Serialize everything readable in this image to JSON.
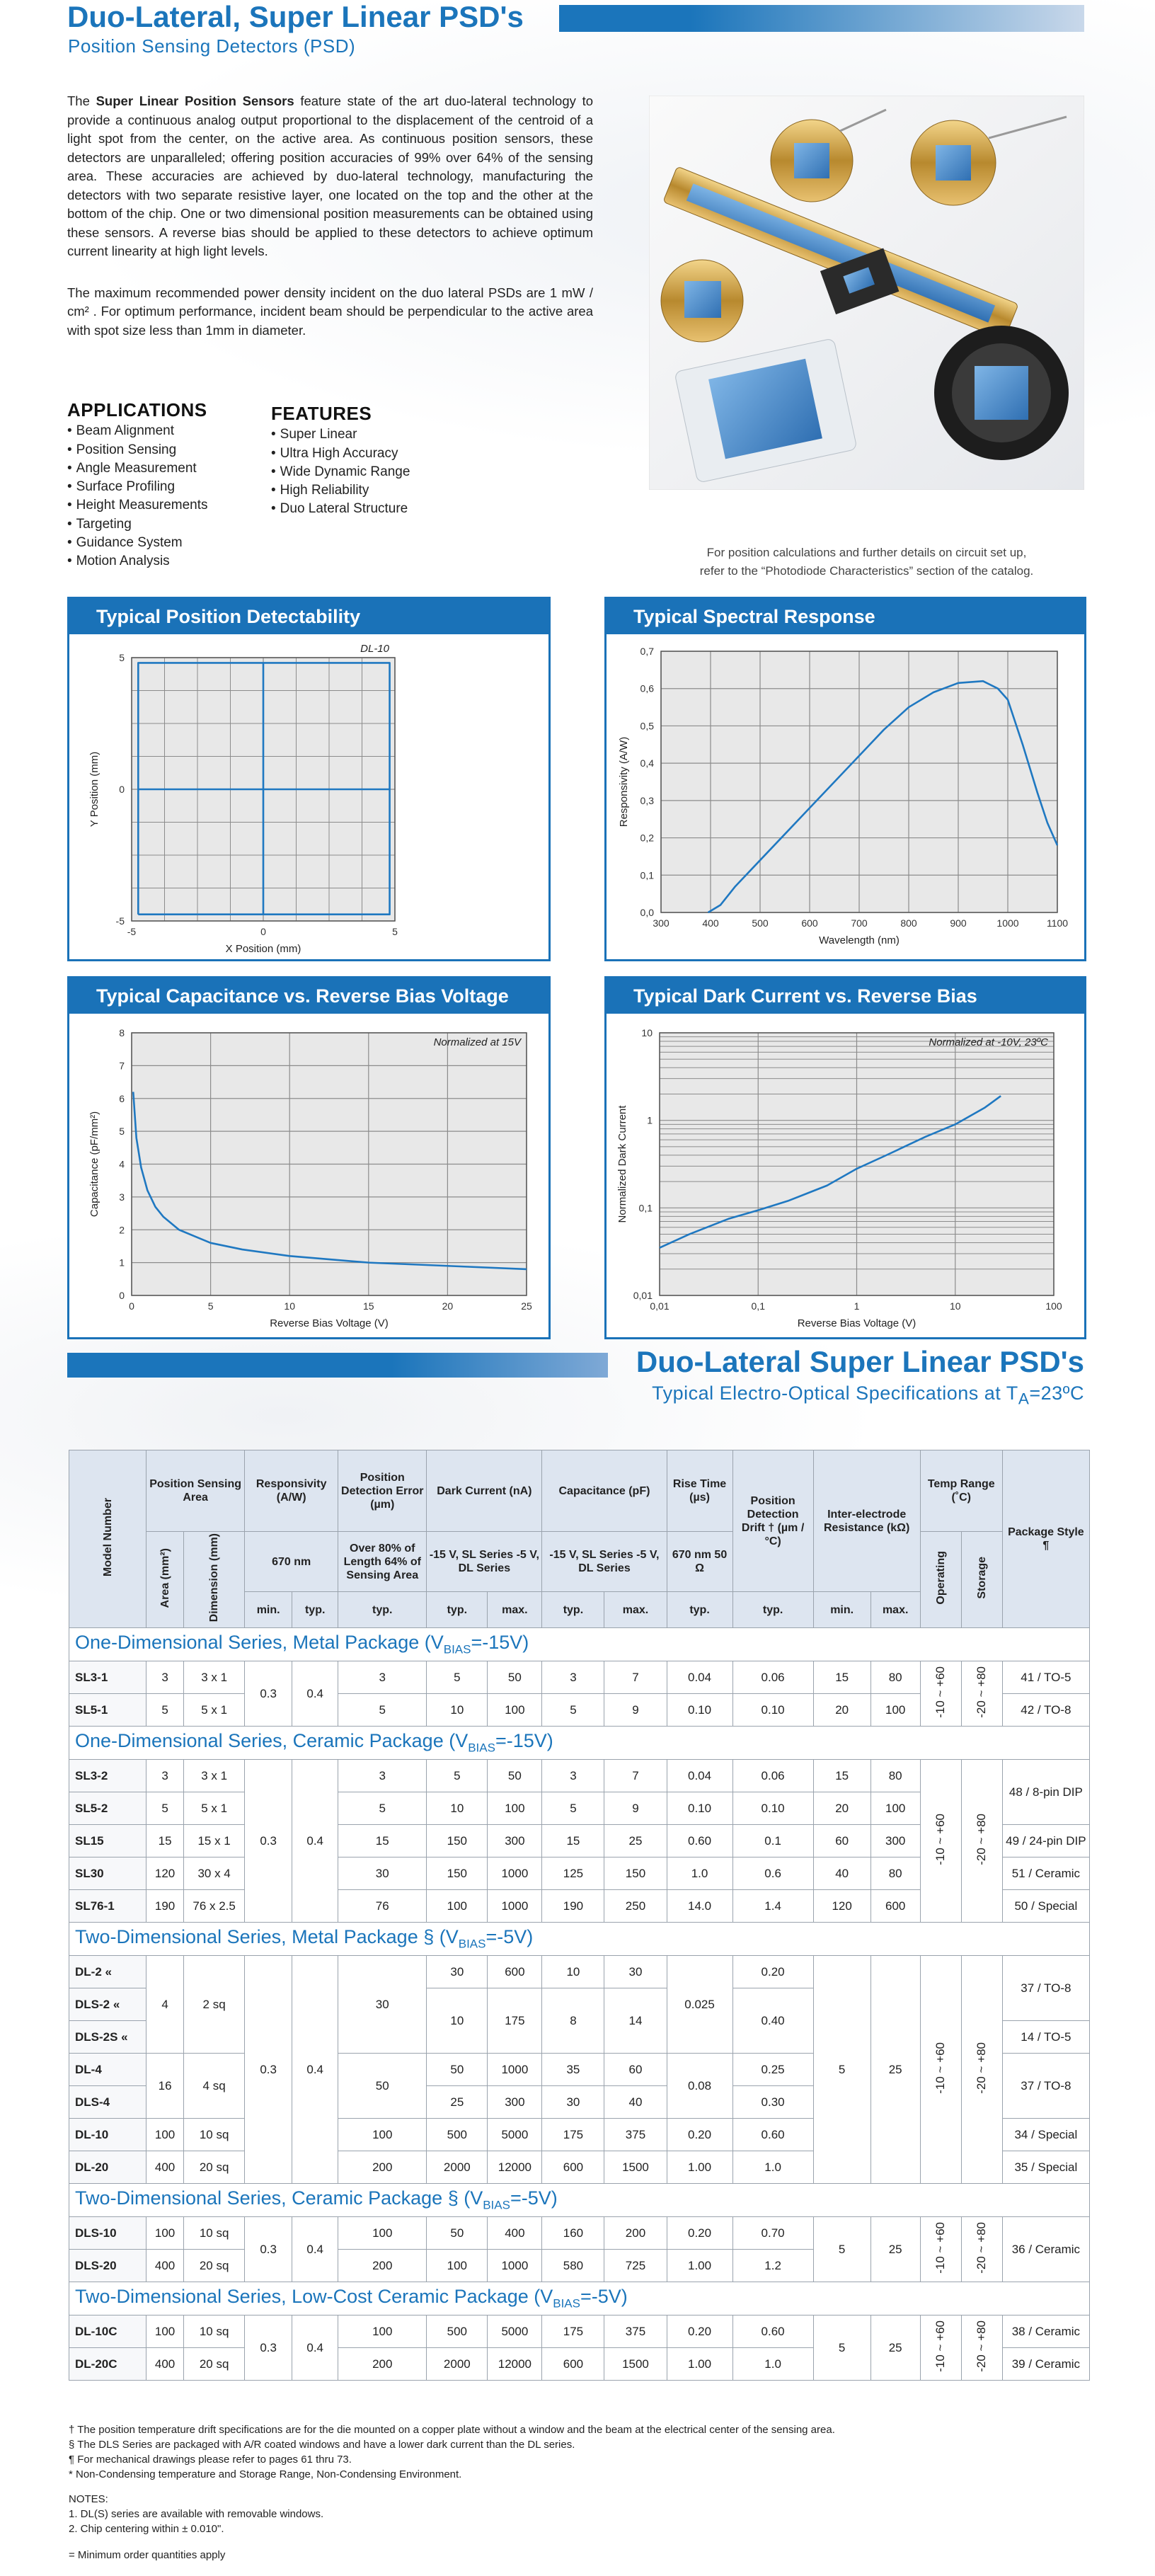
{
  "header": {
    "title": "Duo-Lateral, Super Linear PSD's",
    "subtitle": "Position Sensing Detectors (PSD)"
  },
  "intro": [
    [
      "The ",
      "Super Linear Position Sensors",
      " feature state of the art duo-lateral technology to provide a continuous analog output proportional to the displacement of the centroid of a light spot from the center, on the active area. As continuous position sensors, these detectors are unparalleled; offering position accuracies of 99% over 64% of the sensing area. These accuracies are achieved by duo-lateral technology, manufacturing the detectors with two separate resistive layer, one located on the top and the other at the bottom of the chip. One or two dimensional position measurements can be obtained using these sensors. A reverse bias should be applied to these detectors to achieve optimum current linearity at high light levels."
    ],
    [
      "The maximum recommended power density incident on the duo lateral PSDs are 1 mW / cm² . For optimum performance, incident beam should be perpendicular to the active area with spot size less than 1mm in diameter."
    ]
  ],
  "applications": {
    "title": "APPLICATIONS",
    "items": [
      "Beam Alignment",
      "Position Sensing",
      "Angle Measurement",
      "Surface Profiling",
      "Height Measurements",
      "Targeting",
      "Guidance System",
      "Motion Analysis"
    ]
  },
  "features": {
    "title": "FEATURES",
    "items": [
      "Super Linear",
      "Ultra High Accuracy",
      "Wide Dynamic Range",
      "High Reliability",
      "Duo Lateral Structure"
    ]
  },
  "note": [
    "For position calculations and further details on circuit set up,",
    "refer to the “Photodiode Characteristics” section of the catalog."
  ],
  "chart_data": [
    {
      "type": "line",
      "title": "Typical Position Detectability",
      "annotation": "DL-10",
      "x_label": "X Position (mm)",
      "y_label": "Y Position (mm)",
      "grid": true,
      "xlim": [
        -5,
        5
      ],
      "ylim": [
        -5,
        5
      ],
      "xticks": [
        -5,
        0,
        5
      ],
      "yticks": [
        -5,
        0,
        5
      ],
      "xgrid": [
        -3.75,
        -2.5,
        -1.25,
        1.25,
        2.5,
        3.75
      ],
      "ygrid": [
        -3.75,
        -2.5,
        -1.25,
        1.25,
        2.5,
        3.75
      ],
      "series": [
        {
          "color": "#1f78c1",
          "x": [
            -4.75,
            4.8,
            4.8,
            -4.75,
            -4.75
          ],
          "values": [
            -4.75,
            -4.75,
            4.8,
            4.8,
            -4.75
          ]
        },
        {
          "color": "#1f78c1",
          "x": [
            0,
            0
          ],
          "values": [
            -4.75,
            4.8
          ]
        },
        {
          "color": "#1f78c1",
          "x": [
            -4.75,
            4.8
          ],
          "values": [
            0,
            0
          ]
        }
      ]
    },
    {
      "type": "line",
      "title": "Typical Spectral Response",
      "x_label": "Wavelength (nm)",
      "y_label": "Responsivity (A/W)",
      "grid": true,
      "xlim": [
        300,
        1100
      ],
      "ylim": [
        0,
        0.7
      ],
      "xticks": [
        300,
        400,
        500,
        600,
        700,
        800,
        900,
        1000,
        1100
      ],
      "yticks": [
        {
          "value": 0,
          "label": "0,0"
        },
        {
          "value": 0.1,
          "label": "0,1"
        },
        {
          "value": 0.2,
          "label": "0,2"
        },
        {
          "value": 0.3,
          "label": "0,3"
        },
        {
          "value": 0.4,
          "label": "0,4"
        },
        {
          "value": 0.5,
          "label": "0,5"
        },
        {
          "value": 0.6,
          "label": "0,6"
        },
        {
          "value": 0.7,
          "label": "0,7"
        }
      ],
      "series": [
        {
          "color": "#1f78c1",
          "x": [
            395,
            420,
            450,
            500,
            550,
            600,
            650,
            700,
            750,
            800,
            850,
            900,
            950,
            980,
            1000,
            1030,
            1060,
            1080,
            1100
          ],
          "values": [
            0,
            0.02,
            0.07,
            0.14,
            0.21,
            0.28,
            0.35,
            0.42,
            0.49,
            0.55,
            0.59,
            0.615,
            0.62,
            0.6,
            0.57,
            0.45,
            0.32,
            0.24,
            0.18
          ]
        }
      ]
    },
    {
      "type": "line",
      "title": "Typical Capacitance vs. Reverse Bias Voltage",
      "annotation": "Normalized at 15V",
      "x_label": "Reverse Bias Voltage (V)",
      "y_label": "Capacitance (pF/mm²)",
      "grid": true,
      "xlim": [
        0,
        25
      ],
      "ylim": [
        0,
        8
      ],
      "xticks": [
        0,
        5,
        10,
        15,
        20,
        25
      ],
      "yticks": [
        0,
        1,
        2,
        3,
        4,
        5,
        6,
        7,
        8
      ],
      "series": [
        {
          "color": "#1f78c1",
          "x": [
            0.1,
            0.3,
            0.6,
            1,
            1.5,
            2,
            3,
            4,
            5,
            7,
            10,
            15,
            20,
            25
          ],
          "values": [
            6.2,
            4.8,
            3.9,
            3.2,
            2.7,
            2.4,
            2.0,
            1.8,
            1.6,
            1.4,
            1.2,
            1.0,
            0.9,
            0.8
          ]
        }
      ]
    },
    {
      "type": "line",
      "title": "Typical Dark Current vs. Reverse Bias",
      "annotation": "Normalized at -10V, 23ºC",
      "x_label": "Reverse Bias Voltage (V)",
      "y_label": "Normalized Dark Current",
      "grid": true,
      "xscale": "log",
      "yscale": "log",
      "xlim": [
        0.01,
        100
      ],
      "ylim": [
        0.01,
        10
      ],
      "xticks": [
        {
          "value": 0.01,
          "label": "0,01"
        },
        {
          "value": 0.1,
          "label": "0,1"
        },
        1,
        10,
        100
      ],
      "yticks": [
        {
          "value": 0.01,
          "label": "0,01"
        },
        {
          "value": 0.1,
          "label": "0,1"
        },
        1,
        10
      ],
      "ygrid": [
        0.02,
        0.03,
        0.04,
        0.05,
        0.06,
        0.07,
        0.08,
        0.09,
        0.2,
        0.3,
        0.4,
        0.5,
        0.6,
        0.7,
        0.8,
        0.9,
        2,
        3,
        4,
        5,
        6,
        7,
        8,
        9
      ],
      "series": [
        {
          "color": "#1f78c1",
          "x": [
            0.01,
            0.02,
            0.05,
            0.1,
            0.2,
            0.5,
            1,
            2,
            5,
            10,
            20,
            29
          ],
          "values": [
            0.035,
            0.05,
            0.075,
            0.094,
            0.12,
            0.18,
            0.28,
            0.4,
            0.65,
            0.9,
            1.4,
            1.9
          ]
        }
      ]
    }
  ],
  "spec_header": {
    "title": "Duo-Lateral Super Linear PSD's",
    "subtitle": [
      "Typical Electro-Optical Specifications at T",
      "A",
      "=23ºC"
    ]
  },
  "table": {
    "header": [
      "Model Number",
      "Position Sensing Area",
      "Responsivity (A/W)",
      "Position Detection Error (µm)",
      "Dark Current (nA)",
      "Capacitance (pF)",
      "Rise Time (µs)",
      "Position Detection Drift † (µm / °C)",
      "Inter-electrode Resistance (kΩ)",
      "Temp Range (˚C)",
      "Package Style ¶",
      "Area (mm²)",
      "Dimension (mm)",
      "670 nm",
      "Over 80% of Length 64% of Sensing Area",
      "-15 V, SL Series -5 V, DL Series",
      "-15 V, SL Series -5 V, DL Series",
      "670 nm 50 Ω",
      "Operating",
      "Storage",
      "min.",
      "typ.",
      "typ.",
      "typ.",
      "max.",
      "typ.",
      "max.",
      "typ.",
      "typ.",
      "min.",
      "max."
    ],
    "sections": [
      {
        "title": [
          "One-Dimensional Series, Metal Package (V",
          "BIAS",
          "=-15V)"
        ],
        "rows": [
          [
            "SL3-1",
            "3",
            "3 x 1",
            "0.3",
            "0.4",
            "3",
            "5",
            "50",
            "3",
            "7",
            "0.04",
            "0.06",
            "15",
            "80",
            "-10 ~ +60",
            "-20 ~ +80",
            "41 / TO-5"
          ],
          [
            "SL5-1",
            "5",
            "5 x 1",
            "5",
            "10",
            "100",
            "5",
            "9",
            "0.10",
            "0.10",
            "20",
            "100",
            "42 / TO-8"
          ]
        ]
      },
      {
        "title": [
          "One-Dimensional Series, Ceramic Package (V",
          "BIAS",
          "=-15V)"
        ],
        "rows": [
          [
            "SL3-2",
            "3",
            "3 x 1",
            "0.3",
            "0.4",
            "3",
            "5",
            "50",
            "3",
            "7",
            "0.04",
            "0.06",
            "15",
            "80",
            "-10 ~ +60",
            "-20 ~ +80",
            "48 / 8-pin DIP"
          ],
          [
            "SL5-2",
            "5",
            "5 x 1",
            "5",
            "10",
            "100",
            "5",
            "9",
            "0.10",
            "0.10",
            "20",
            "100"
          ],
          [
            "SL15",
            "15",
            "15 x 1",
            "15",
            "150",
            "300",
            "15",
            "25",
            "0.60",
            "0.1",
            "60",
            "300",
            "49 / 24-pin DIP"
          ],
          [
            "SL30",
            "120",
            "30 x 4",
            "30",
            "150",
            "1000",
            "125",
            "150",
            "1.0",
            "0.6",
            "40",
            "80",
            "51 / Ceramic"
          ],
          [
            "SL76-1",
            "190",
            "76 x 2.5",
            "76",
            "100",
            "1000",
            "190",
            "250",
            "14.0",
            "1.4",
            "120",
            "600",
            "50 / Special"
          ]
        ]
      },
      {
        "title": [
          "Two-Dimensional Series, Metal Package § (V",
          "BIAS",
          "=-5V)"
        ],
        "rows": [
          [
            "DL-2 «",
            "4",
            "2 sq",
            "0.3",
            "0.4",
            "30",
            "30",
            "600",
            "10",
            "30",
            "0.025",
            "0.20",
            "5",
            "25",
            "-10 ~ +60",
            "-20 ~ +80",
            "37 / TO-8"
          ],
          [
            "DLS-2 «",
            "10",
            "175",
            "8",
            "14",
            "0.40"
          ],
          [
            "DLS-2S «",
            "14 / TO-5"
          ],
          [
            "DL-4",
            "16",
            "4 sq",
            "50",
            "50",
            "1000",
            "35",
            "60",
            "0.08",
            "0.25",
            "37 / TO-8"
          ],
          [
            "DLS-4",
            "25",
            "300",
            "30",
            "40",
            "0.30"
          ],
          [
            "DL-10",
            "100",
            "10 sq",
            "100",
            "500",
            "5000",
            "175",
            "375",
            "0.20",
            "0.60",
            "34 / Special"
          ],
          [
            "DL-20",
            "400",
            "20 sq",
            "200",
            "2000",
            "12000",
            "600",
            "1500",
            "1.00",
            "1.0",
            "35 / Special"
          ]
        ]
      },
      {
        "title": [
          "Two-Dimensional Series, Ceramic Package § (V",
          "BIAS",
          "=-5V)"
        ],
        "rows": [
          [
            "DLS-10",
            "100",
            "10 sq",
            "0.3",
            "0.4",
            "100",
            "50",
            "400",
            "160",
            "200",
            "0.20",
            "0.70",
            "5",
            "25",
            "-10 ~ +60",
            "-20 ~ +80",
            "36 / Ceramic"
          ],
          [
            "DLS-20",
            "400",
            "20 sq",
            "200",
            "100",
            "1000",
            "580",
            "725",
            "1.00",
            "1.2"
          ]
        ]
      },
      {
        "title": [
          "Two-Dimensional Series, Low-Cost Ceramic Package (V",
          "BIAS",
          "=-5V)"
        ],
        "rows": [
          [
            "DL-10C",
            "100",
            "10 sq",
            "0.3",
            "0.4",
            "100",
            "500",
            "5000",
            "175",
            "375",
            "0.20",
            "0.60",
            "5",
            "25",
            "-10 ~ +60",
            "-20 ~ +80",
            "38 / Ceramic"
          ],
          [
            "DL-20C",
            "400",
            "20 sq",
            "200",
            "2000",
            "12000",
            "600",
            "1500",
            "1.00",
            "1.0",
            "39 / Ceramic"
          ]
        ]
      }
    ]
  },
  "footnotes": [
    "† The position temperature drift specifications are for the die mounted on a copper plate without a window and the beam at the electrical center of the sensing area.",
    "§ The DLS Series are packaged with A/R coated windows and have a lower dark current than the DL series.",
    "¶ For mechanical drawings please refer to pages 61 thru 73.",
    "* Non-Condensing temperature and Storage Range, Non-Condensing Environment."
  ],
  "notes": {
    "title": "NOTES:",
    "items": [
      "1. DL(S) series are available with removable windows.",
      "2. Chip centering within ± 0.010\"."
    ],
    "order": "= Minimum order quantities apply"
  }
}
